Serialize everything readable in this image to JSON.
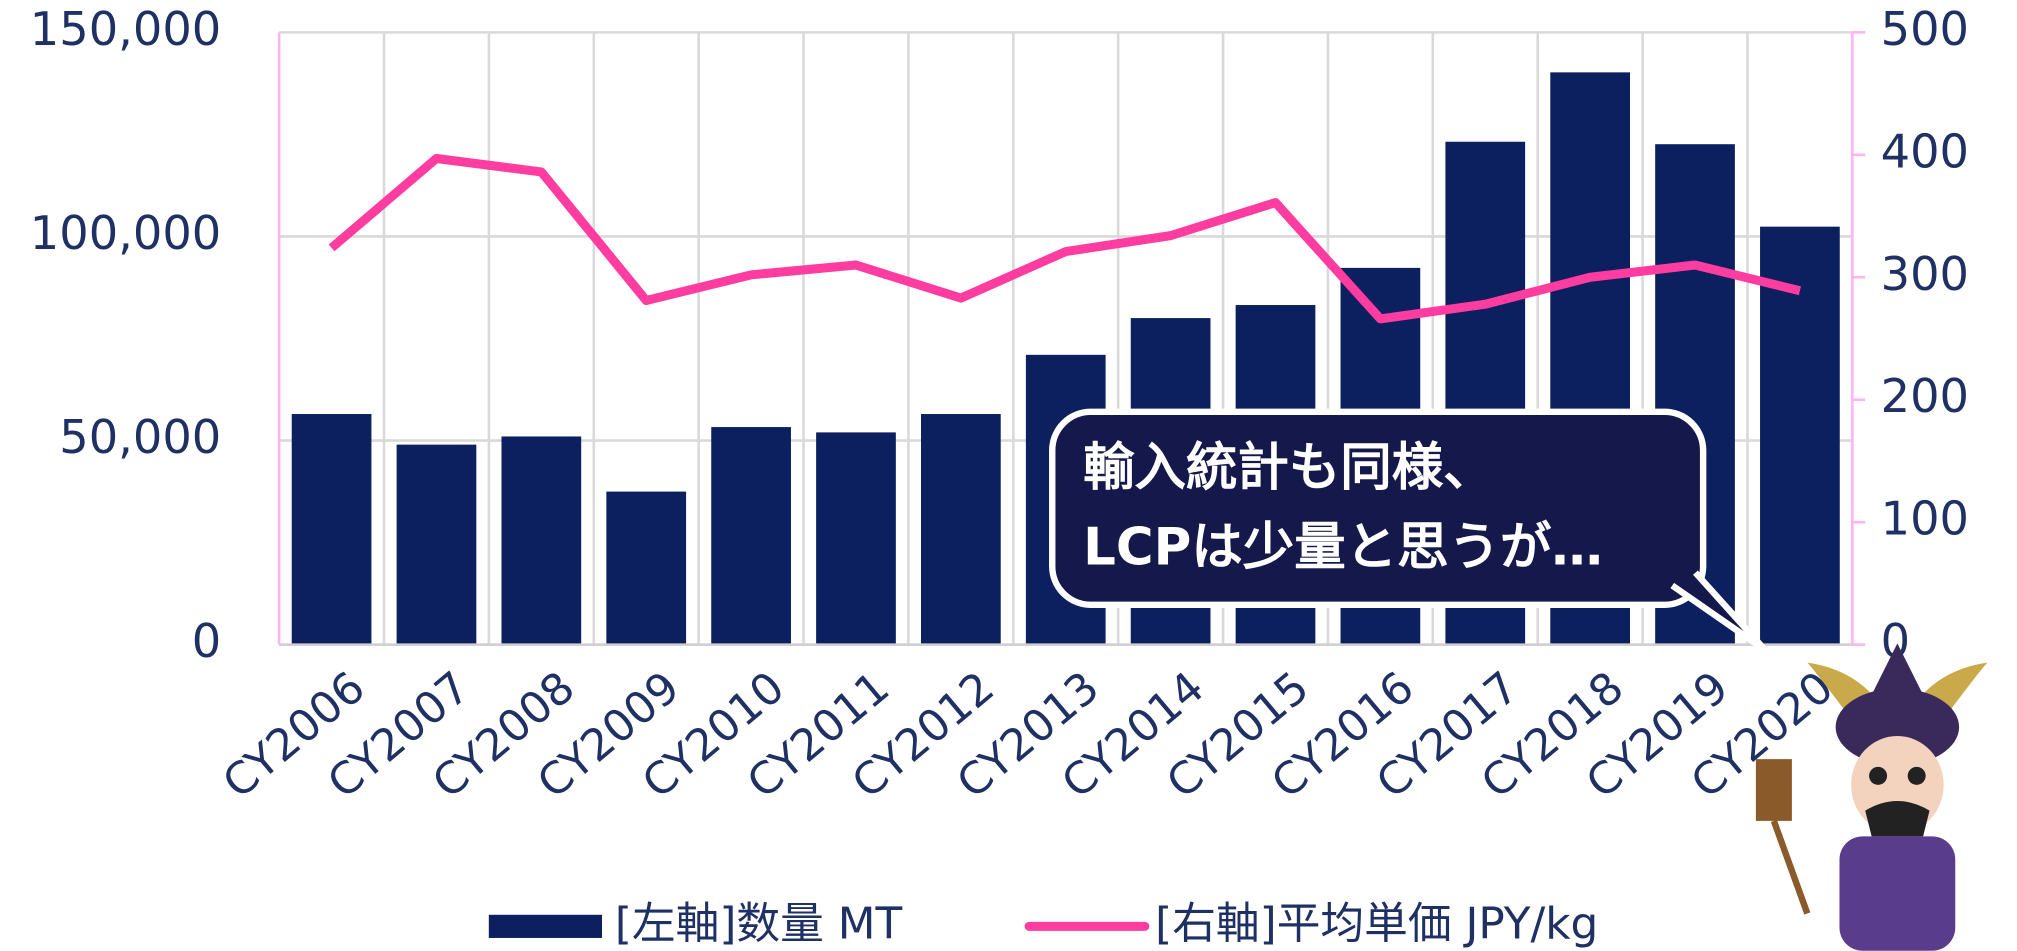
{
  "chart_data": {
    "type": "bar-line",
    "categories": [
      "CY2006",
      "CY2007",
      "CY2008",
      "CY2009",
      "CY2010",
      "CY2011",
      "CY2012",
      "CY2013",
      "CY2014",
      "CY2015",
      "CY2016",
      "CY2017",
      "CY2018",
      "CY2019",
      "CY2020"
    ],
    "series": [
      {
        "name": "[左軸]数量 MT",
        "color": "#0c1f5f",
        "type": "bar",
        "values": [
          56500,
          49000,
          51000,
          37500,
          53300,
          52000,
          56500,
          71000,
          80000,
          83200,
          92300,
          123200,
          140200,
          122600,
          102400
        ]
      },
      {
        "name": "[右軸]平均単価 JPY/kg",
        "color": "#ff3c9f",
        "type": "line",
        "axis": "y2",
        "values": [
          324,
          397,
          386,
          281,
          302,
          310,
          283,
          321,
          334,
          361,
          266,
          278,
          300,
          310,
          289
        ]
      }
    ],
    "ylim": [
      0,
      150000
    ],
    "yticks": [
      0,
      {
        "value": 50000,
        "label": "50,000"
      },
      {
        "value": 100000,
        "label": "100,000"
      },
      {
        "value": 150000,
        "label": "150,000"
      }
    ],
    "y2lim": [
      0,
      500
    ],
    "y2ticks": [
      0,
      100,
      200,
      300,
      400,
      500
    ],
    "grid": true,
    "legend": "bottom",
    "annotation": [
      "輸入統計も同様、",
      "LCPは少量と思うが…"
    ]
  }
}
